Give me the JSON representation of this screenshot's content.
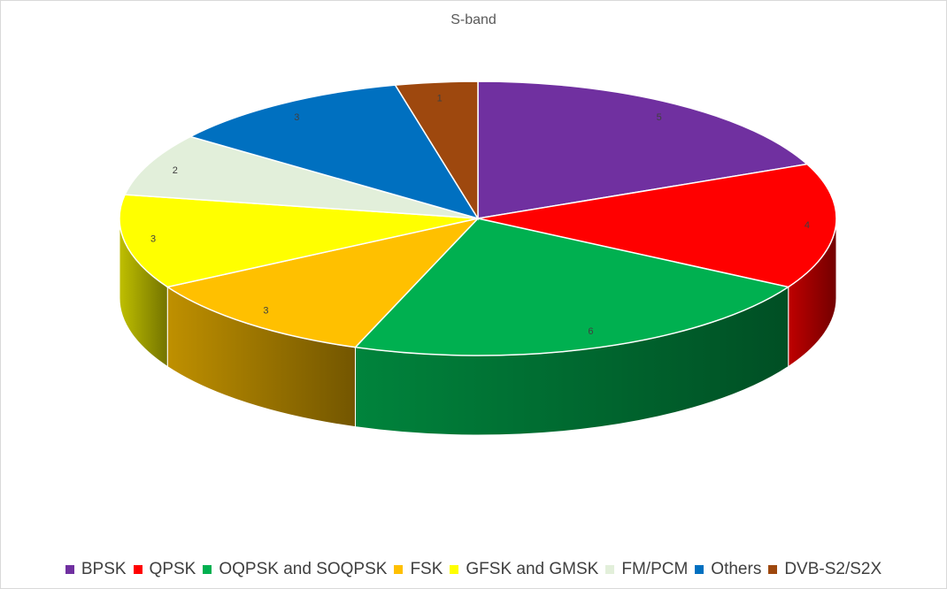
{
  "chart_data": {
    "type": "pie",
    "title": "S-band",
    "categories": [
      "BPSK",
      "QPSK",
      "OQPSK and SOQPSK",
      "FSK",
      "GFSK and GMSK",
      "FM/PCM",
      "Others",
      "DVB-S2/S2X"
    ],
    "values": [
      5,
      4,
      6,
      3,
      3,
      2,
      3,
      1
    ],
    "colors": [
      "#7030a0",
      "#ff0000",
      "#00b050",
      "#ffc000",
      "#ffff00",
      "#e2efda",
      "#0070c0",
      "#9e480e"
    ],
    "legend": "bottom",
    "style": "3d-exploded-disc"
  }
}
